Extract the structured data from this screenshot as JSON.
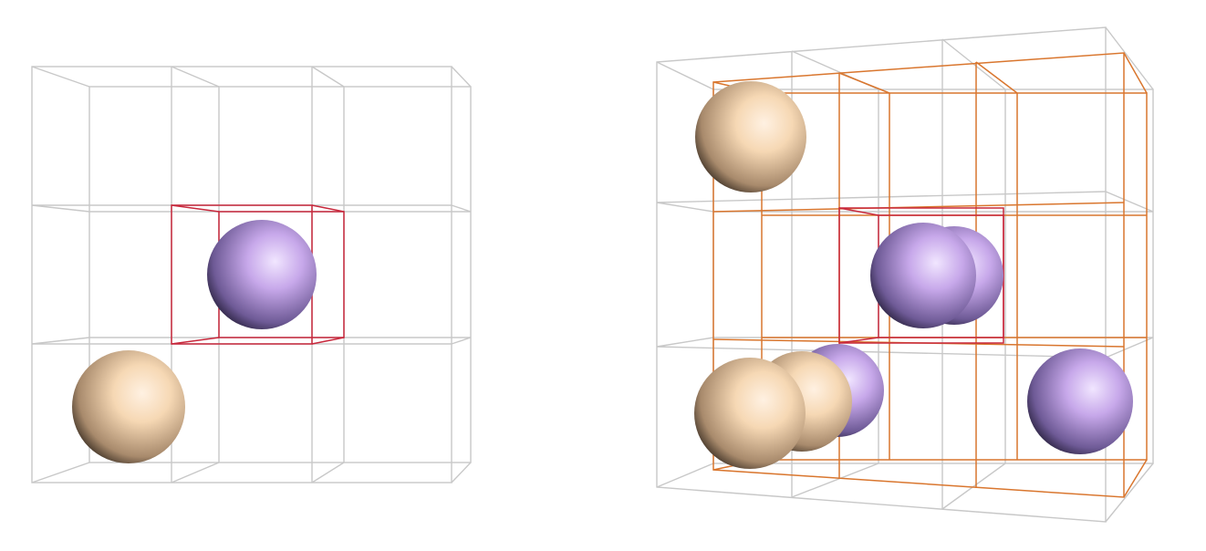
{
  "colors": {
    "background": "#ffffff",
    "grid_lines": "#c8c8c8",
    "highlight_cell": "#c8283c",
    "highlight_neighbors": "#d9762e",
    "atom_tan": "#f6d8b4",
    "atom_violet": "#c7a8ea"
  },
  "panels": [
    {
      "name": "single-cell-view",
      "grid": "3x3x3",
      "highlighted_cell": [
        1,
        1
      ],
      "atoms": [
        {
          "species": "violet"
        },
        {
          "species": "tan"
        }
      ]
    },
    {
      "name": "neighbor-cells-view",
      "grid": "3x3x3",
      "highlighted_cell": [
        1,
        1
      ],
      "neighbor_shell": "3x3",
      "atoms": [
        {
          "species": "tan"
        },
        {
          "species": "violet"
        },
        {
          "species": "violet"
        },
        {
          "species": "violet"
        },
        {
          "species": "tan"
        },
        {
          "species": "tan"
        },
        {
          "species": "violet"
        }
      ]
    }
  ]
}
